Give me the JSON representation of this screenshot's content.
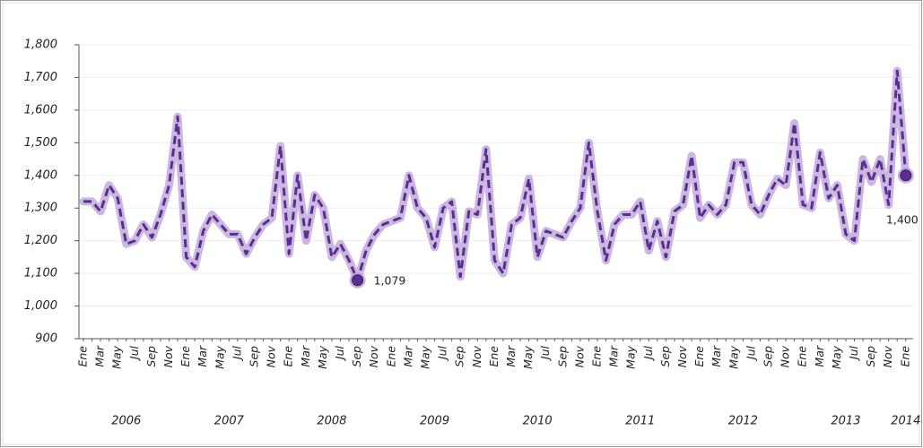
{
  "chart_data": {
    "type": "line",
    "color": "#5b2d8e",
    "glow_color": "#b9a0d8",
    "grid": true,
    "ylim": [
      900,
      1800
    ],
    "yticks": [
      900,
      {
        "value": 1000,
        "label": "1,000"
      },
      {
        "value": 1100,
        "label": "1,100"
      },
      {
        "value": 1200,
        "label": "1,200"
      },
      {
        "value": 1300,
        "label": "1,300"
      },
      {
        "value": 1400,
        "label": "1,400"
      },
      {
        "value": 1500,
        "label": "1,500"
      },
      {
        "value": 1600,
        "label": "1,600"
      },
      {
        "value": 1700,
        "label": "1,700"
      },
      {
        "value": 1800,
        "label": "1,800"
      }
    ],
    "categories": [
      "Ene",
      null,
      "Mar",
      null,
      "May",
      null,
      "Jul",
      null,
      "Sep",
      null,
      "Nov",
      null,
      "Ene",
      null,
      "Mar",
      null,
      "May",
      null,
      "Jul",
      null,
      "Sep",
      null,
      "Nov",
      null,
      "Ene",
      null,
      "Mar",
      null,
      "May",
      null,
      "Jul",
      null,
      "Sep",
      null,
      "Nov",
      null,
      "Ene",
      null,
      "Mar",
      null,
      "May",
      null,
      "Jul",
      null,
      "Sep",
      null,
      "Nov",
      null,
      "Ene",
      null,
      "Mar",
      null,
      "May",
      null,
      "Jul",
      null,
      "Sep",
      null,
      "Nov",
      null,
      "Ene",
      null,
      "Mar",
      null,
      "May",
      null,
      "Jul",
      null,
      "Sep",
      null,
      "Nov",
      null,
      "Ene",
      null,
      "Mar",
      null,
      "May",
      null,
      "Jul",
      null,
      "Sep",
      null,
      "Nov",
      null,
      "Ene",
      null,
      "Mar",
      null,
      "May",
      null,
      "Jul",
      null,
      "Sep",
      null,
      "Nov",
      null,
      "Ene"
    ],
    "years": [
      "2006",
      "2007",
      "2008",
      "2009",
      "2010",
      "2011",
      "2012",
      "2013",
      "2014"
    ],
    "values": [
      1320,
      1320,
      1290,
      1370,
      1330,
      1190,
      1200,
      1250,
      1210,
      1280,
      1370,
      1580,
      1150,
      1120,
      1230,
      1280,
      1250,
      1220,
      1220,
      1160,
      1210,
      1250,
      1270,
      1490,
      1160,
      1400,
      1200,
      1340,
      1300,
      1150,
      1190,
      1140,
      1079,
      1170,
      1220,
      1250,
      1260,
      1270,
      1400,
      1300,
      1270,
      1180,
      1300,
      1320,
      1090,
      1290,
      1280,
      1480,
      1140,
      1100,
      1250,
      1270,
      1390,
      1150,
      1230,
      1220,
      1210,
      1260,
      1300,
      1500,
      1290,
      1140,
      1250,
      1280,
      1280,
      1320,
      1170,
      1260,
      1150,
      1290,
      1310,
      1460,
      1270,
      1310,
      1280,
      1310,
      1440,
      1440,
      1310,
      1280,
      1340,
      1390,
      1370,
      1560,
      1310,
      1300,
      1470,
      1330,
      1370,
      1220,
      1200,
      1450,
      1380,
      1450,
      1310,
      1720,
      1400
    ],
    "value_labels": [
      null,
      null,
      null,
      null,
      null,
      null,
      null,
      null,
      null,
      null,
      null,
      null,
      null,
      null,
      null,
      null,
      null,
      null,
      null,
      null,
      null,
      null,
      null,
      null,
      null,
      null,
      null,
      null,
      null,
      null,
      null,
      null,
      "1,079",
      null,
      null,
      null,
      null,
      null,
      null,
      null,
      null,
      null,
      null,
      null,
      null,
      null,
      null,
      null,
      null,
      null,
      null,
      null,
      null,
      null,
      null,
      null,
      null,
      null,
      null,
      null,
      null,
      null,
      null,
      null,
      null,
      null,
      null,
      null,
      null,
      null,
      null,
      null,
      null,
      null,
      null,
      null,
      null,
      null,
      null,
      null,
      null,
      null,
      null,
      null,
      null,
      null,
      null,
      null,
      null,
      null,
      null,
      null,
      null,
      null,
      null,
      null,
      "1,400"
    ]
  }
}
